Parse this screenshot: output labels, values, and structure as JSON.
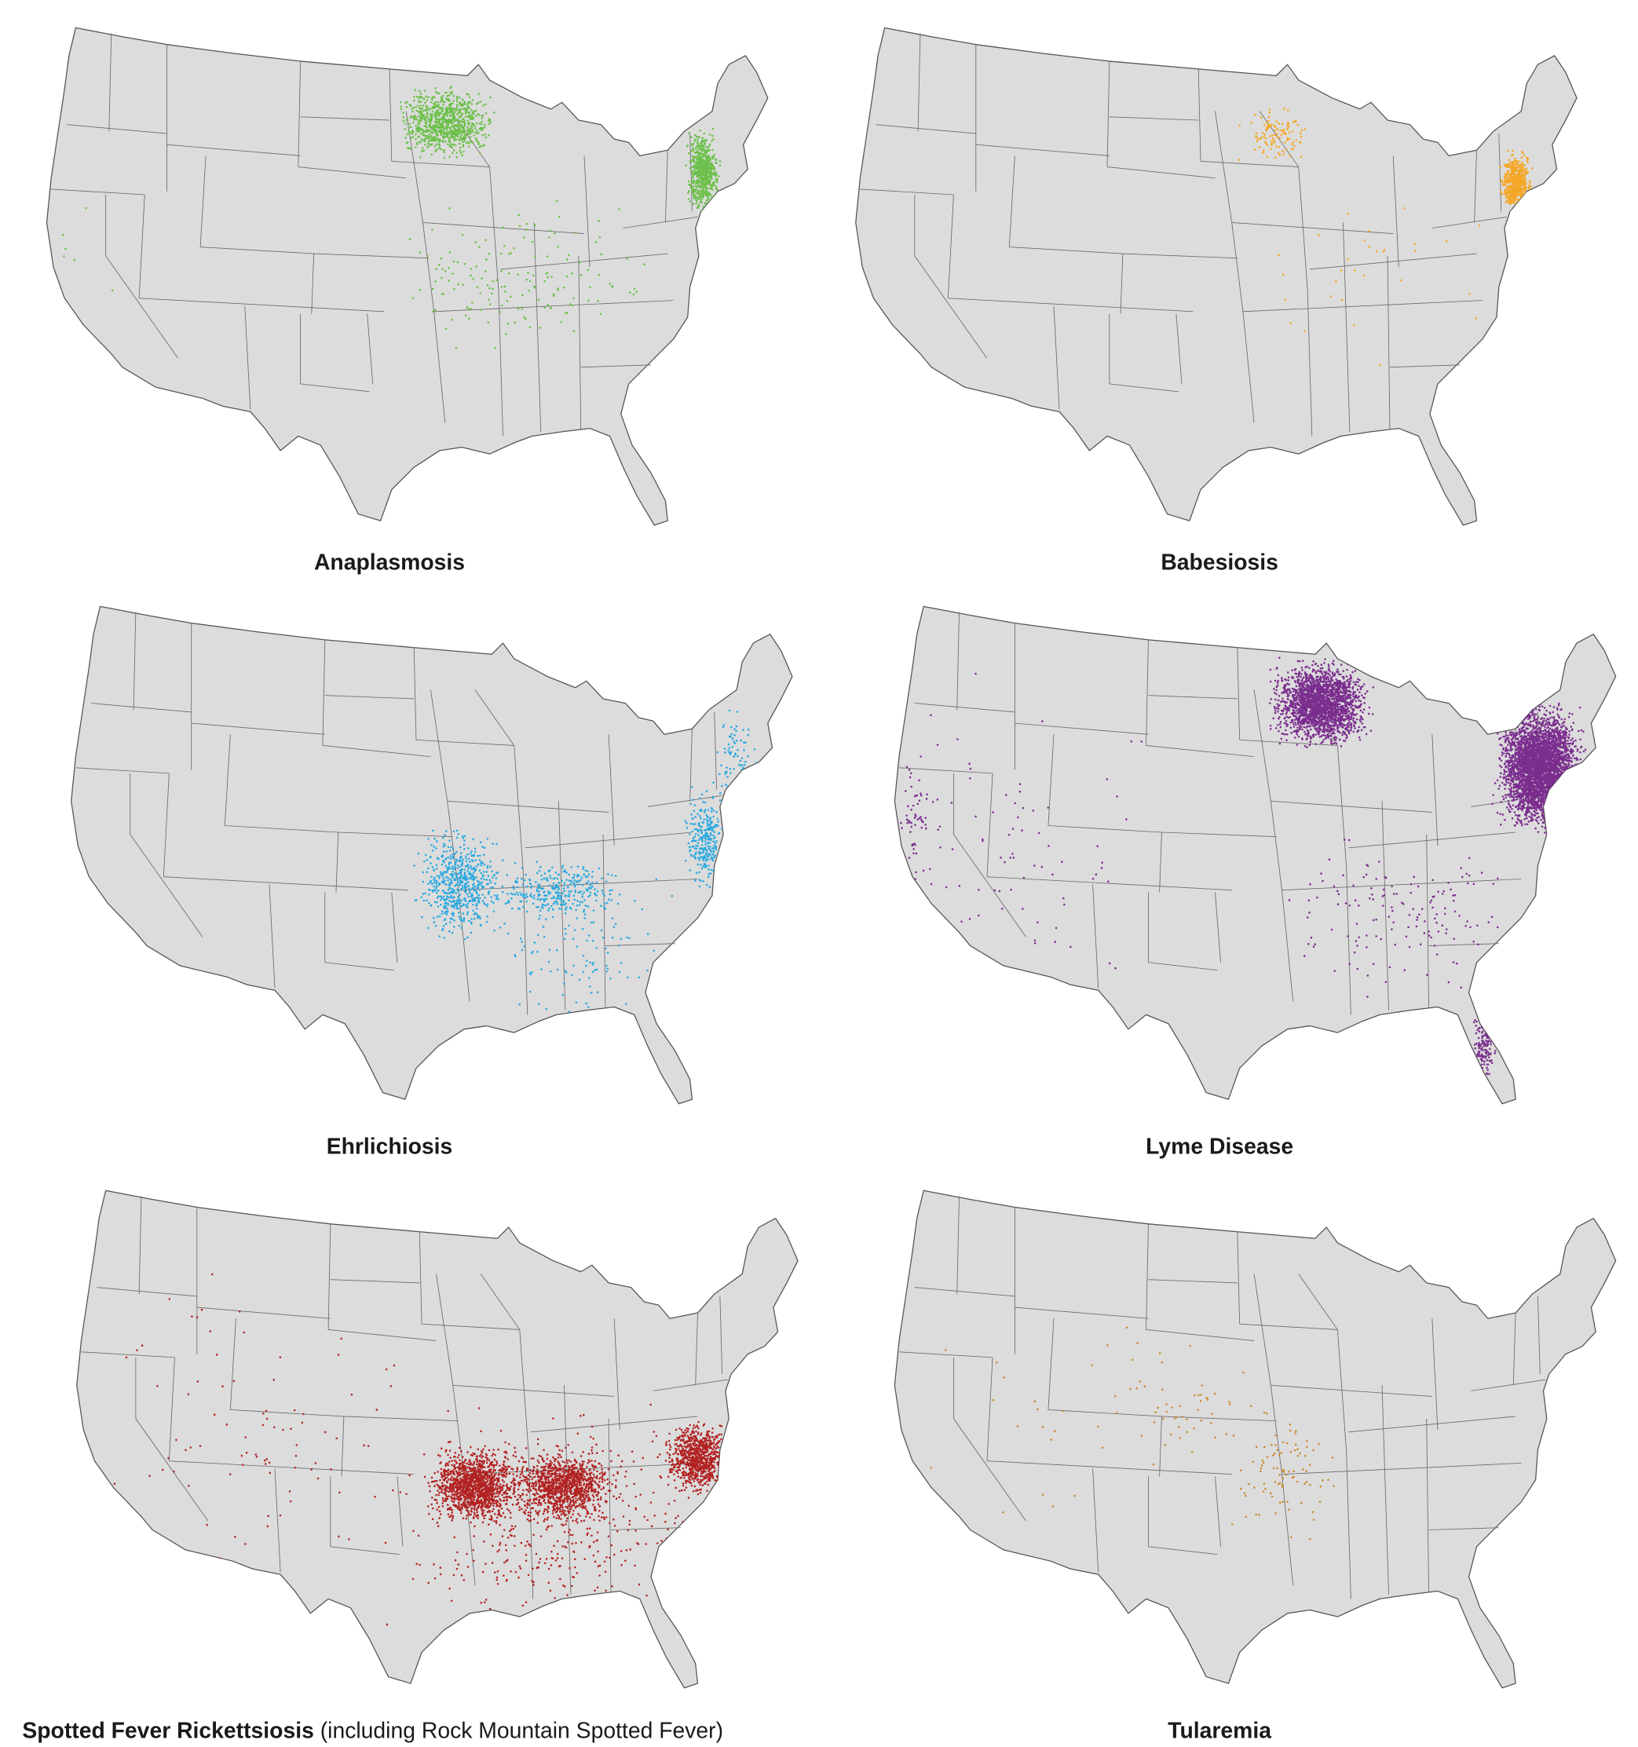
{
  "maps": [
    {
      "title": "Anaplasmosis"
    },
    {
      "title": "Babesiosis"
    },
    {
      "title": "Ehrlichiosis"
    },
    {
      "title": "Lyme Disease"
    },
    {
      "title": "Spotted Fever Rickettsiosis",
      "subtitle": "(including Rock Mountain Spotted Fever)"
    },
    {
      "title": "Tularemia"
    }
  ]
}
